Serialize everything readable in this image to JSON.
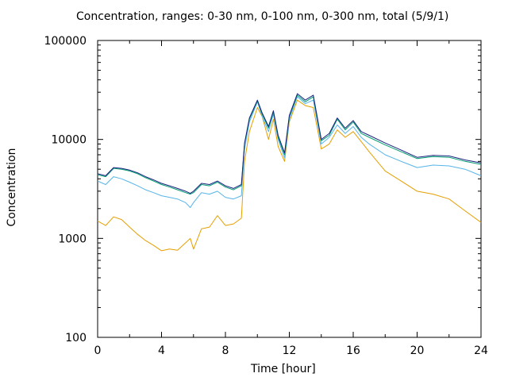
{
  "chart_data": {
    "type": "line",
    "title": "Concentration, ranges: 0-30 nm, 0-100 nm, 0-300 nm, total (5/9/1)",
    "xlabel": "Time [hour]",
    "ylabel": "Concentration",
    "xlim": [
      0,
      24
    ],
    "ylim": [
      100,
      100000
    ],
    "yscale": "log",
    "x_ticks": [
      "0",
      "4",
      "8",
      "12",
      "16",
      "20",
      "24"
    ],
    "y_ticks": [
      "100",
      "1000",
      "10000",
      "100000"
    ],
    "grid": false,
    "colors": [
      "#e69f00",
      "#56b4e9",
      "#009e73",
      "#1a237e"
    ],
    "x": [
      0,
      0.5,
      1,
      1.5,
      2,
      2.5,
      3,
      3.5,
      4,
      4.5,
      5,
      5.5,
      5.8,
      6,
      6.5,
      7,
      7.5,
      8,
      8.5,
      9,
      9.2,
      9.5,
      10,
      10.3,
      10.7,
      11,
      11.3,
      11.7,
      12,
      12.5,
      13,
      13.5,
      14,
      14.5,
      15,
      15.5,
      16,
      16.5,
      17,
      18,
      19,
      20,
      21,
      22,
      23,
      24
    ],
    "series": [
      {
        "values": [
          1500,
          1350,
          1650,
          1550,
          1300,
          1100,
          950,
          850,
          750,
          780,
          760,
          900,
          1000,
          780,
          1250,
          1300,
          1700,
          1350,
          1400,
          1600,
          6000,
          12000,
          21000,
          17000,
          10000,
          16000,
          8500,
          6000,
          15000,
          25000,
          22000,
          21000,
          8000,
          9000,
          12500,
          10500,
          12000,
          9500,
          7500,
          4800,
          3800,
          3000,
          2800,
          2500,
          1900,
          1450
        ]
      },
      {
        "values": [
          3800,
          3500,
          4200,
          4000,
          3700,
          3400,
          3100,
          2900,
          2700,
          2600,
          2500,
          2300,
          2050,
          2300,
          2900,
          2800,
          3000,
          2600,
          2500,
          2700,
          8000,
          15000,
          24000,
          17000,
          12000,
          18000,
          10000,
          6500,
          16000,
          27000,
          23000,
          25000,
          9000,
          10500,
          14000,
          11500,
          13500,
          10500,
          9000,
          7000,
          6000,
          5200,
          5500,
          5400,
          5000,
          4300
        ]
      },
      {
        "values": [
          4400,
          4200,
          5100,
          5000,
          4800,
          4500,
          4100,
          3800,
          3500,
          3300,
          3100,
          2900,
          2800,
          2900,
          3500,
          3400,
          3700,
          3300,
          3100,
          3400,
          9000,
          16000,
          24500,
          18000,
          13000,
          19000,
          10500,
          7000,
          17000,
          28000,
          24000,
          27000,
          9700,
          11000,
          16000,
          12500,
          15000,
          11500,
          10500,
          8800,
          7500,
          6400,
          6700,
          6600,
          6000,
          5600
        ]
      },
      {
        "values": [
          4500,
          4300,
          5200,
          5100,
          4900,
          4600,
          4200,
          3900,
          3600,
          3400,
          3200,
          3000,
          2850,
          3000,
          3600,
          3500,
          3800,
          3400,
          3200,
          3500,
          9200,
          16500,
          25000,
          18500,
          13500,
          19500,
          11000,
          7300,
          17500,
          29000,
          25000,
          28000,
          10000,
          11500,
          16500,
          13000,
          15500,
          12000,
          11000,
          9200,
          7800,
          6600,
          6900,
          6800,
          6200,
          5800
        ]
      }
    ]
  }
}
